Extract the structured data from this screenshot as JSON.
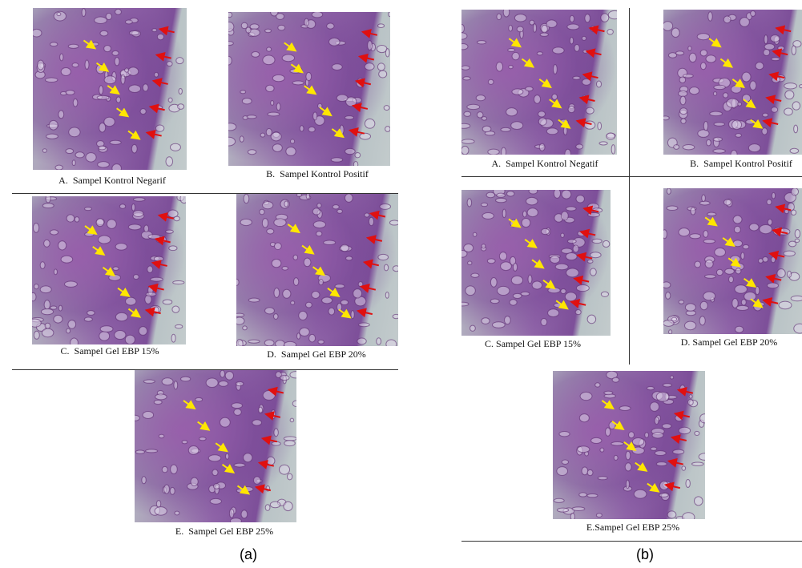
{
  "panels": [
    {
      "label": "(a)",
      "images": [
        {
          "caption": "A.  Sampel Kontrol Negarif"
        },
        {
          "caption": "B.  Sampel Kontrol Positif"
        },
        {
          "caption": "C.  Sampel Gel EBP 15%"
        },
        {
          "caption": "D.  Sampel Gel EBP 20%"
        },
        {
          "caption": "E.  Sampel Gel EBP 25%"
        }
      ]
    },
    {
      "label": "(b)",
      "images": [
        {
          "caption": "A.  Sampel Kontrol Negatif"
        },
        {
          "caption": "B.  Sampel Kontrol Positif"
        },
        {
          "caption": "C. Sampel Gel EBP 15%"
        },
        {
          "caption": "D. Sampel Gel EBP 20%"
        },
        {
          "caption": "E.Sampel Gel EBP 25%"
        }
      ]
    }
  ]
}
